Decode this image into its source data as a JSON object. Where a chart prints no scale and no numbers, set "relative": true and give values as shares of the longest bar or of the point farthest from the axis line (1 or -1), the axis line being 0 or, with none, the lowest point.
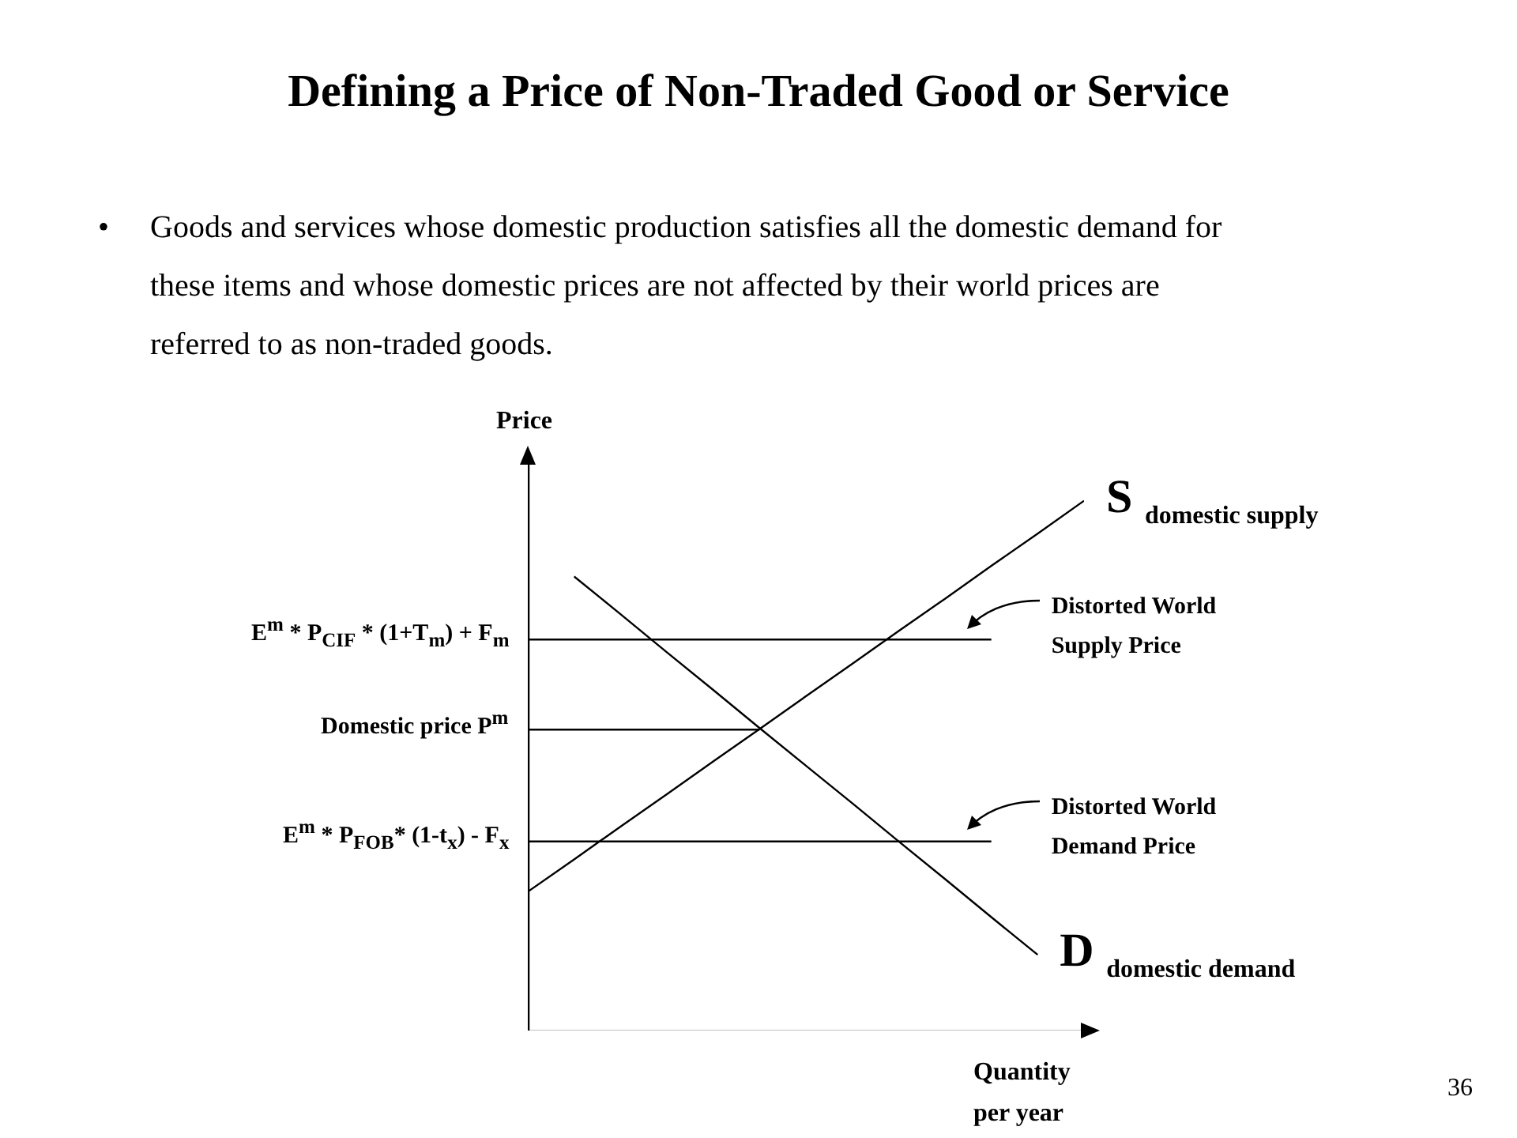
{
  "chart_data": {
    "type": "line",
    "relative": true,
    "title": "Defining a Price of Non-Traded Good or Service",
    "subtitle": "• Goods and services whose domestic production satisfies all the domestic demand for these items and whose domestic prices are not affected by their world prices are referred to as non-traded goods.",
    "xlabel": "Quantity per year",
    "ylabel": "Price",
    "line_style": "solid",
    "categories": [
      null,
      null,
      null,
      null,
      null,
      null,
      null,
      null,
      null,
      null,
      null,
      null,
      null
    ],
    "series": [
      {
        "name": "S domestic supply",
        "color": "#000000",
        "values": [
          0.262,
          0.323,
          0.385,
          0.446,
          0.508,
          0.569,
          0.631,
          0.692,
          0.754,
          0.815,
          0.877,
          0.938,
          1.0
        ]
      },
      {
        "name": "D domestic demand",
        "color": "#000000",
        "values": [
          null,
          0.857,
          0.786,
          0.714,
          0.643,
          0.571,
          0.5,
          0.429,
          0.357,
          0.286,
          0.214,
          0.143,
          null
        ]
      },
      {
        "name": "E$^{m}$ * P$_{CIF}$ * (1+T$_{m}$) + F$_{m}$",
        "color": "#000000",
        "values": [
          0.738,
          0.738,
          0.738,
          0.738,
          0.738,
          0.738,
          0.738,
          0.738,
          0.738,
          0.738,
          0.738,
          null,
          null
        ]
      },
      {
        "name": "Domestic price  P$^{m}$",
        "color": "#000000",
        "values": [
          0.568,
          0.568,
          0.568,
          0.568,
          0.568,
          0.568,
          null,
          null,
          null,
          null,
          null,
          null,
          null
        ]
      },
      {
        "name": "E$^{m}$ * P$_{FOB}$* (1-t$_{x}$) - F$_{x}$",
        "color": "#000000",
        "values": [
          0.357,
          0.357,
          0.357,
          0.357,
          0.357,
          0.357,
          0.357,
          0.357,
          0.357,
          0.357,
          0.357,
          null,
          null
        ]
      }
    ],
    "annotations": [
      "Distorted World Supply Price",
      "Distorted World Demand Price",
      "36"
    ]
  }
}
